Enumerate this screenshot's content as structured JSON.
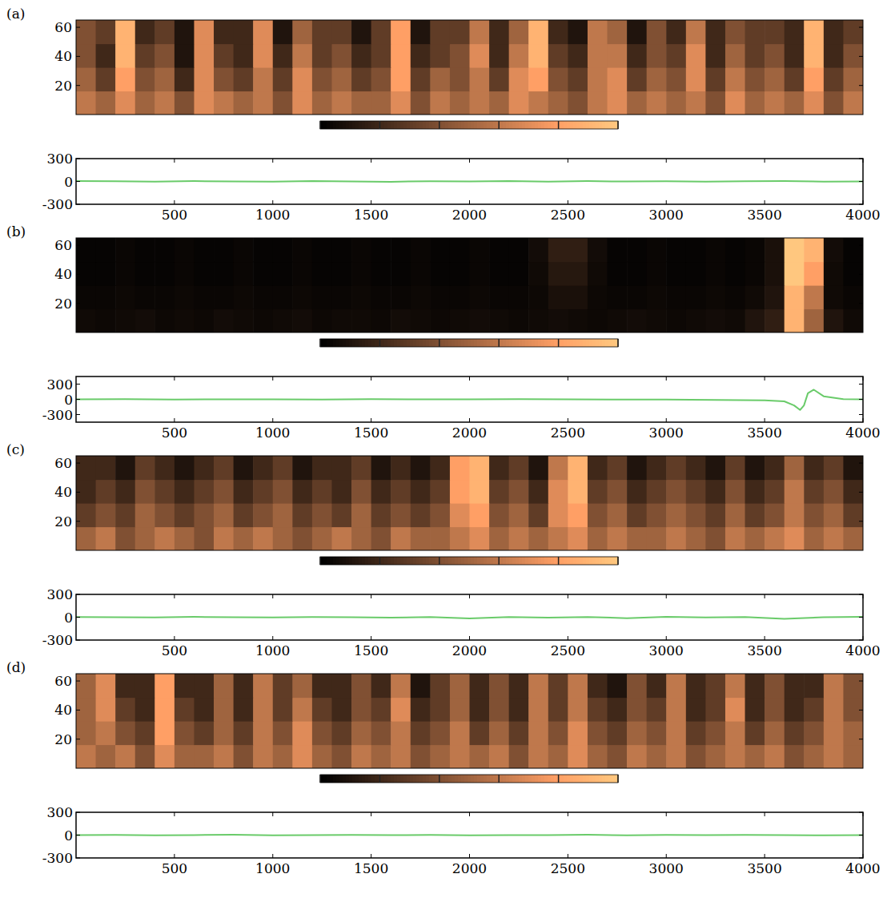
{
  "chart_data": [
    {
      "type": "heatmap",
      "label": "(a)",
      "xlim": [
        0,
        4000
      ],
      "ylim": [
        0,
        65
      ],
      "yticks": [
        20,
        40,
        60
      ],
      "tick_labels": "y",
      "color_range": [
        0,
        1
      ],
      "color_ticks": [
        0,
        0.2,
        0.4,
        0.6,
        0.8,
        1
      ],
      "cells": [
        [
          0.6,
          0.5,
          0.7,
          0.5,
          0.6,
          0.4,
          0.7,
          0.6,
          0.5,
          0.6,
          0.4,
          0.7,
          0.5,
          0.6,
          0.5,
          0.5,
          0.7,
          0.4,
          0.6,
          0.5,
          0.6,
          0.5,
          0.7,
          0.6,
          0.5,
          0.4,
          0.6,
          0.7,
          0.5,
          0.6,
          0.5,
          0.6,
          0.4,
          0.7,
          0.5,
          0.6,
          0.5,
          0.7,
          0.4,
          0.6
        ],
        [
          0.5,
          0.3,
          0.8,
          0.4,
          0.5,
          0.2,
          0.7,
          0.4,
          0.3,
          0.6,
          0.3,
          0.7,
          0.4,
          0.5,
          0.3,
          0.4,
          0.8,
          0.3,
          0.5,
          0.4,
          0.6,
          0.3,
          0.7,
          0.8,
          0.4,
          0.3,
          0.6,
          0.7,
          0.3,
          0.5,
          0.4,
          0.7,
          0.3,
          0.6,
          0.4,
          0.5,
          0.3,
          0.8,
          0.3,
          0.5
        ],
        [
          0.4,
          0.2,
          0.9,
          0.3,
          0.4,
          0.1,
          0.7,
          0.3,
          0.2,
          0.7,
          0.2,
          0.6,
          0.3,
          0.4,
          0.2,
          0.3,
          0.8,
          0.2,
          0.3,
          0.4,
          0.7,
          0.2,
          0.6,
          0.9,
          0.3,
          0.2,
          0.6,
          0.6,
          0.2,
          0.4,
          0.3,
          0.7,
          0.2,
          0.5,
          0.3,
          0.4,
          0.2,
          0.9,
          0.2,
          0.4
        ],
        [
          0.4,
          0.3,
          0.9,
          0.2,
          0.3,
          0.1,
          0.7,
          0.2,
          0.2,
          0.7,
          0.1,
          0.5,
          0.3,
          0.3,
          0.1,
          0.3,
          0.8,
          0.1,
          0.3,
          0.3,
          0.6,
          0.2,
          0.5,
          0.9,
          0.2,
          0.1,
          0.6,
          0.5,
          0.1,
          0.4,
          0.2,
          0.6,
          0.2,
          0.4,
          0.3,
          0.3,
          0.2,
          0.9,
          0.2,
          0.3
        ]
      ]
    },
    {
      "type": "line",
      "xlim": [
        0,
        4000
      ],
      "ylim": [
        -300,
        300
      ],
      "xticks": [
        500,
        1000,
        1500,
        2000,
        2500,
        3000,
        3500,
        4000
      ],
      "yticks": [
        -300,
        0,
        300
      ],
      "x": [
        0,
        200,
        400,
        600,
        800,
        1000,
        1200,
        1400,
        1600,
        1800,
        2000,
        2200,
        2400,
        2600,
        2800,
        3000,
        3200,
        3400,
        3600,
        3800,
        4000
      ],
      "series": [
        {
          "color": "#6acb6a",
          "values": [
            5,
            2,
            -3,
            4,
            0,
            -2,
            6,
            1,
            -4,
            3,
            0,
            5,
            -2,
            4,
            -1,
            3,
            -3,
            2,
            5,
            -2,
            0
          ]
        }
      ]
    },
    {
      "type": "heatmap",
      "label": "(b)",
      "xlim": [
        0,
        4000
      ],
      "ylim": [
        0,
        65
      ],
      "yticks": [
        20,
        40,
        60
      ],
      "tick_labels": "y",
      "color_range": [
        0,
        1
      ],
      "color_ticks": [
        0,
        0.2,
        0.4,
        0.6,
        0.8,
        1
      ],
      "cells": [
        [
          0.05,
          0.04,
          0.05,
          0.06,
          0.04,
          0.05,
          0.04,
          0.06,
          0.05,
          0.04,
          0.05,
          0.06,
          0.04,
          0.05,
          0.05,
          0.04,
          0.06,
          0.05,
          0.04,
          0.05,
          0.06,
          0.05,
          0.04,
          0.05,
          0.06,
          0.05,
          0.04,
          0.05,
          0.06,
          0.05,
          0.04,
          0.05,
          0.06,
          0.05,
          0.1,
          0.15,
          0.9,
          0.5,
          0.1,
          0.05
        ],
        [
          0.03,
          0.03,
          0.04,
          0.03,
          0.03,
          0.04,
          0.03,
          0.03,
          0.04,
          0.03,
          0.03,
          0.04,
          0.03,
          0.03,
          0.04,
          0.03,
          0.03,
          0.04,
          0.03,
          0.03,
          0.04,
          0.03,
          0.03,
          0.04,
          0.08,
          0.08,
          0.04,
          0.03,
          0.03,
          0.04,
          0.03,
          0.03,
          0.04,
          0.03,
          0.05,
          0.1,
          0.9,
          0.6,
          0.05,
          0.03
        ],
        [
          0.02,
          0.02,
          0.03,
          0.02,
          0.02,
          0.03,
          0.02,
          0.02,
          0.03,
          0.02,
          0.02,
          0.03,
          0.02,
          0.02,
          0.03,
          0.02,
          0.02,
          0.03,
          0.02,
          0.02,
          0.03,
          0.02,
          0.02,
          0.05,
          0.12,
          0.12,
          0.05,
          0.02,
          0.02,
          0.03,
          0.02,
          0.02,
          0.03,
          0.02,
          0.03,
          0.08,
          1.0,
          0.8,
          0.05,
          0.02
        ],
        [
          0.02,
          0.02,
          0.03,
          0.02,
          0.02,
          0.03,
          0.02,
          0.02,
          0.03,
          0.02,
          0.02,
          0.03,
          0.02,
          0.02,
          0.03,
          0.02,
          0.02,
          0.03,
          0.02,
          0.02,
          0.03,
          0.02,
          0.02,
          0.06,
          0.15,
          0.15,
          0.06,
          0.02,
          0.02,
          0.03,
          0.02,
          0.02,
          0.03,
          0.02,
          0.03,
          0.08,
          1.0,
          0.9,
          0.06,
          0.02
        ]
      ]
    },
    {
      "type": "line",
      "xlim": [
        0,
        4000
      ],
      "ylim": [
        -450,
        450
      ],
      "xticks": [
        500,
        1000,
        1500,
        2000,
        2500,
        3000,
        3500,
        4000
      ],
      "yticks": [
        -300,
        0,
        300
      ],
      "x": [
        0,
        250,
        500,
        750,
        1000,
        1250,
        1500,
        1750,
        2000,
        2250,
        2500,
        2750,
        3000,
        3250,
        3500,
        3600,
        3650,
        3680,
        3700,
        3720,
        3750,
        3800,
        3900,
        4000
      ],
      "series": [
        {
          "color": "#6acb6a",
          "values": [
            0,
            2,
            -3,
            1,
            0,
            -2,
            3,
            0,
            -1,
            2,
            0,
            -3,
            -5,
            -10,
            -20,
            -40,
            -120,
            -210,
            -120,
            120,
            190,
            60,
            5,
            0
          ]
        }
      ]
    },
    {
      "type": "heatmap",
      "label": "(c)",
      "xlim": [
        0,
        4000
      ],
      "ylim": [
        0,
        65
      ],
      "yticks": [
        20,
        40,
        60
      ],
      "tick_labels": "y",
      "color_range": [
        0,
        1
      ],
      "color_ticks": [
        0,
        0.2,
        0.4,
        0.6,
        0.8,
        1
      ],
      "cells": [
        [
          0.5,
          0.6,
          0.4,
          0.5,
          0.6,
          0.5,
          0.4,
          0.6,
          0.5,
          0.6,
          0.5,
          0.4,
          0.5,
          0.6,
          0.5,
          0.4,
          0.6,
          0.5,
          0.5,
          0.6,
          0.7,
          0.5,
          0.6,
          0.5,
          0.6,
          0.7,
          0.5,
          0.6,
          0.5,
          0.5,
          0.6,
          0.5,
          0.4,
          0.6,
          0.5,
          0.6,
          0.7,
          0.5,
          0.6,
          0.5
        ],
        [
          0.3,
          0.4,
          0.3,
          0.5,
          0.4,
          0.3,
          0.4,
          0.5,
          0.3,
          0.4,
          0.5,
          0.3,
          0.4,
          0.3,
          0.5,
          0.3,
          0.4,
          0.3,
          0.4,
          0.7,
          0.8,
          0.4,
          0.5,
          0.3,
          0.7,
          0.8,
          0.4,
          0.5,
          0.3,
          0.4,
          0.5,
          0.4,
          0.3,
          0.5,
          0.3,
          0.4,
          0.6,
          0.4,
          0.5,
          0.3
        ],
        [
          0.2,
          0.3,
          0.2,
          0.4,
          0.3,
          0.2,
          0.3,
          0.4,
          0.2,
          0.3,
          0.4,
          0.2,
          0.3,
          0.2,
          0.4,
          0.2,
          0.3,
          0.2,
          0.3,
          0.8,
          0.9,
          0.3,
          0.4,
          0.2,
          0.7,
          0.9,
          0.3,
          0.4,
          0.2,
          0.3,
          0.4,
          0.3,
          0.2,
          0.4,
          0.2,
          0.3,
          0.6,
          0.3,
          0.4,
          0.2
        ],
        [
          0.2,
          0.2,
          0.1,
          0.3,
          0.2,
          0.1,
          0.2,
          0.3,
          0.1,
          0.2,
          0.3,
          0.1,
          0.2,
          0.2,
          0.3,
          0.1,
          0.2,
          0.1,
          0.2,
          0.8,
          0.9,
          0.2,
          0.3,
          0.1,
          0.6,
          0.9,
          0.2,
          0.3,
          0.1,
          0.2,
          0.3,
          0.2,
          0.1,
          0.3,
          0.1,
          0.2,
          0.5,
          0.2,
          0.3,
          0.1
        ]
      ]
    },
    {
      "type": "line",
      "xlim": [
        0,
        4000
      ],
      "ylim": [
        -300,
        300
      ],
      "xticks": [
        500,
        1000,
        1500,
        2000,
        2500,
        3000,
        3500,
        4000
      ],
      "yticks": [
        -300,
        0,
        300
      ],
      "x": [
        0,
        200,
        400,
        600,
        800,
        1000,
        1200,
        1400,
        1600,
        1800,
        2000,
        2200,
        2400,
        2600,
        2800,
        3000,
        3200,
        3400,
        3600,
        3800,
        4000
      ],
      "series": [
        {
          "color": "#6acb6a",
          "values": [
            3,
            0,
            -2,
            4,
            1,
            -3,
            2,
            0,
            -4,
            2,
            -15,
            3,
            -5,
            2,
            -12,
            4,
            -2,
            3,
            -20,
            0,
            5
          ]
        }
      ]
    },
    {
      "type": "heatmap",
      "label": "(d)",
      "xlim": [
        0,
        4000
      ],
      "ylim": [
        0,
        65
      ],
      "yticks": [
        20,
        40,
        60
      ],
      "tick_labels": "y",
      "color_range": [
        0,
        1
      ],
      "color_ticks": [
        0,
        0.2,
        0.4,
        0.6,
        0.8,
        1
      ],
      "cells": [
        [
          0.6,
          0.5,
          0.6,
          0.4,
          0.7,
          0.5,
          0.5,
          0.6,
          0.4,
          0.6,
          0.5,
          0.7,
          0.5,
          0.4,
          0.6,
          0.5,
          0.6,
          0.4,
          0.5,
          0.6,
          0.5,
          0.6,
          0.4,
          0.6,
          0.5,
          0.7,
          0.5,
          0.4,
          0.6,
          0.5,
          0.6,
          0.4,
          0.5,
          0.6,
          0.5,
          0.6,
          0.4,
          0.5,
          0.6,
          0.5
        ],
        [
          0.5,
          0.6,
          0.4,
          0.3,
          0.8,
          0.4,
          0.3,
          0.5,
          0.3,
          0.6,
          0.4,
          0.7,
          0.4,
          0.3,
          0.5,
          0.4,
          0.6,
          0.3,
          0.4,
          0.6,
          0.3,
          0.5,
          0.3,
          0.6,
          0.4,
          0.7,
          0.4,
          0.3,
          0.5,
          0.4,
          0.6,
          0.3,
          0.4,
          0.6,
          0.3,
          0.5,
          0.3,
          0.4,
          0.6,
          0.5
        ],
        [
          0.5,
          0.7,
          0.3,
          0.2,
          0.8,
          0.3,
          0.2,
          0.5,
          0.2,
          0.6,
          0.3,
          0.6,
          0.3,
          0.2,
          0.4,
          0.3,
          0.7,
          0.2,
          0.3,
          0.5,
          0.2,
          0.4,
          0.2,
          0.6,
          0.3,
          0.6,
          0.3,
          0.2,
          0.4,
          0.3,
          0.6,
          0.2,
          0.3,
          0.7,
          0.2,
          0.4,
          0.2,
          0.3,
          0.6,
          0.4
        ],
        [
          0.5,
          0.7,
          0.2,
          0.2,
          0.8,
          0.2,
          0.2,
          0.5,
          0.2,
          0.6,
          0.3,
          0.5,
          0.2,
          0.2,
          0.4,
          0.2,
          0.6,
          0.1,
          0.3,
          0.5,
          0.2,
          0.4,
          0.2,
          0.6,
          0.3,
          0.6,
          0.2,
          0.1,
          0.4,
          0.2,
          0.6,
          0.2,
          0.3,
          0.6,
          0.2,
          0.4,
          0.2,
          0.2,
          0.6,
          0.4
        ]
      ]
    },
    {
      "type": "line",
      "xlim": [
        0,
        4000
      ],
      "ylim": [
        -300,
        300
      ],
      "xticks": [
        500,
        1000,
        1500,
        2000,
        2500,
        3000,
        3500,
        4000
      ],
      "yticks": [
        -300,
        0,
        300
      ],
      "x": [
        0,
        200,
        400,
        600,
        800,
        1000,
        1200,
        1400,
        1600,
        1800,
        2000,
        2200,
        2400,
        2600,
        2800,
        3000,
        3200,
        3400,
        3600,
        3800,
        4000
      ],
      "series": [
        {
          "color": "#6acb6a",
          "values": [
            0,
            3,
            -2,
            1,
            4,
            -3,
            0,
            2,
            -1,
            3,
            -2,
            1,
            0,
            4,
            -3,
            2,
            -1,
            3,
            0,
            -2,
            1
          ]
        }
      ]
    }
  ]
}
